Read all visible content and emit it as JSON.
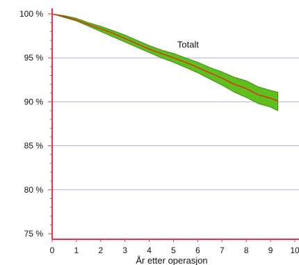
{
  "chart_data": {
    "type": "line",
    "title": "",
    "xlabel": "År etter operasjon",
    "ylabel": "",
    "xlim": [
      0,
      10
    ],
    "ylim": [
      75,
      100
    ],
    "x_ticks": [
      "0",
      "1",
      "2",
      "3",
      "4",
      "5",
      "6",
      "7",
      "8",
      "9",
      "10"
    ],
    "y_ticks": [
      "100 %",
      "95 %",
      "90 %",
      "85 %",
      "80 %",
      "75 %"
    ],
    "y_tick_values": [
      100,
      95,
      90,
      85,
      80,
      75
    ],
    "grid": "horizontal",
    "annotations": [
      {
        "text": "Totalt",
        "x": 5.6,
        "y": 96.0
      }
    ],
    "series": [
      {
        "name": "Totalt",
        "x": [
          0,
          0.5,
          1,
          1.5,
          2,
          2.5,
          3,
          3.5,
          4,
          4.5,
          5,
          5.5,
          6,
          6.5,
          7,
          7.5,
          8,
          8.5,
          9,
          9.3
        ],
        "values": [
          100,
          99.7,
          99.3,
          98.8,
          98.3,
          97.8,
          97.2,
          96.6,
          96.0,
          95.5,
          95.0,
          94.5,
          93.9,
          93.3,
          92.7,
          92.0,
          91.5,
          90.8,
          90.4,
          90.1
        ],
        "ci_lower": [
          100,
          99.6,
          99.2,
          98.6,
          98.0,
          97.4,
          96.8,
          96.2,
          95.6,
          95.0,
          94.5,
          93.9,
          93.3,
          92.6,
          91.9,
          91.1,
          90.5,
          89.8,
          89.4,
          89.0
        ],
        "ci_upper": [
          100,
          99.8,
          99.5,
          99.0,
          98.6,
          98.1,
          97.6,
          97.0,
          96.4,
          95.9,
          95.5,
          95.0,
          94.5,
          93.9,
          93.4,
          92.8,
          92.4,
          91.7,
          91.3,
          91.1
        ]
      }
    ],
    "colors": {
      "line": "#d63a1a",
      "band": "#5fbf1f",
      "band_edge": "#3e8e10",
      "grid": "#b8a8d8",
      "axis": "#e8334a"
    }
  }
}
